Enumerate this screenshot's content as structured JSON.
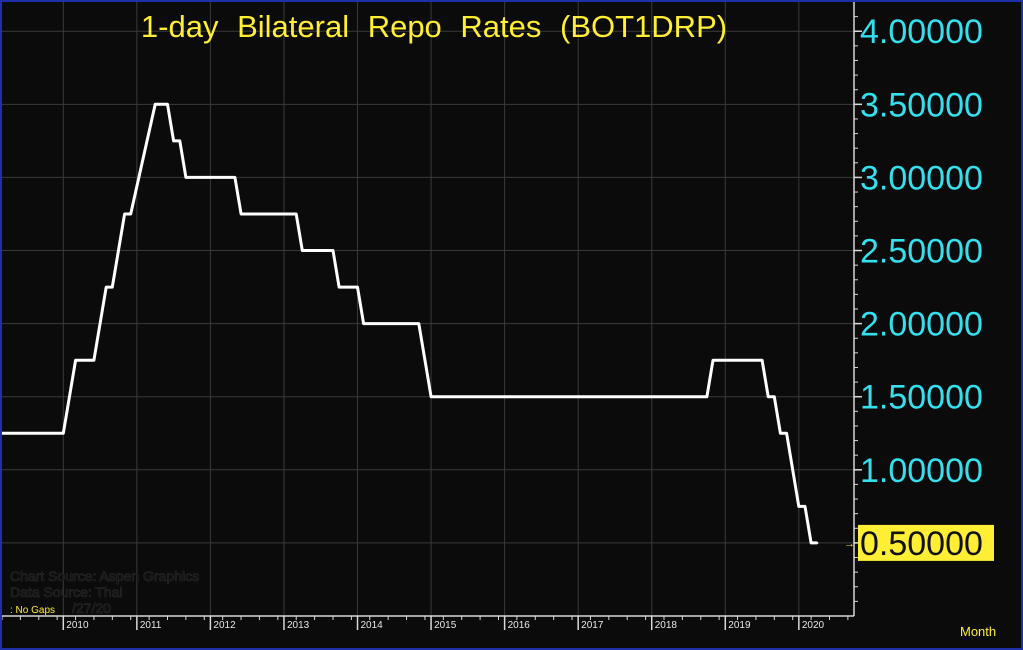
{
  "chart_data": {
    "type": "line",
    "title": "1-day  Bilateral  Repo  Rates  (BOT1DRP)",
    "y_ticks": [
      "4.00000",
      "3.50000",
      "3.00000",
      "2.50000",
      "2.00000",
      "1.50000",
      "1.00000",
      "0.50000"
    ],
    "ylim": [
      0,
      4.2
    ],
    "x_ticks": [
      "2010",
      "2011",
      "2012",
      "2013",
      "2014",
      "2015",
      "2016",
      "2017",
      "2018",
      "2019",
      "2020"
    ],
    "xlim": [
      "2009-03",
      "2020-10"
    ],
    "last_value": "0.50000",
    "grid": true,
    "x_period_label": "Month",
    "source_lines": [
      "Chart  Source:  Aspen  Graphics",
      "Data  Source:  Thai",
      "/27/20"
    ],
    "no_gaps_label": ": No  Gaps",
    "colors": {
      "background": "#0b0b0b",
      "line": "#ffffff",
      "title": "#ffee33",
      "y_axis_text": "#35e0ee",
      "grid": "#3a3a3a",
      "last_value_box": "#ffee33",
      "border": "#1f2fa8"
    },
    "series": [
      {
        "values": [
          {
            "x": "2009-03",
            "y": 1.25
          },
          {
            "x": "2010-01",
            "y": 1.25
          },
          {
            "x": "2010-03",
            "y": 1.75
          },
          {
            "x": "2010-06",
            "y": 1.75
          },
          {
            "x": "2010-08",
            "y": 2.25
          },
          {
            "x": "2010-09",
            "y": 2.25
          },
          {
            "x": "2010-11",
            "y": 2.75
          },
          {
            "x": "2010-12",
            "y": 2.75
          },
          {
            "x": "2011-04",
            "y": 3.5
          },
          {
            "x": "2011-06",
            "y": 3.5
          },
          {
            "x": "2011-07",
            "y": 3.25
          },
          {
            "x": "2011-08",
            "y": 3.25
          },
          {
            "x": "2011-09",
            "y": 3.0
          },
          {
            "x": "2012-05",
            "y": 3.0
          },
          {
            "x": "2012-06",
            "y": 2.75
          },
          {
            "x": "2013-03",
            "y": 2.75
          },
          {
            "x": "2013-04",
            "y": 2.5
          },
          {
            "x": "2013-09",
            "y": 2.5
          },
          {
            "x": "2013-10",
            "y": 2.25
          },
          {
            "x": "2014-01",
            "y": 2.25
          },
          {
            "x": "2014-02",
            "y": 2.0
          },
          {
            "x": "2014-11",
            "y": 2.0
          },
          {
            "x": "2015-01",
            "y": 1.5
          },
          {
            "x": "2018-10",
            "y": 1.5
          },
          {
            "x": "2018-11",
            "y": 1.75
          },
          {
            "x": "2019-07",
            "y": 1.75
          },
          {
            "x": "2019-08",
            "y": 1.5
          },
          {
            "x": "2019-09",
            "y": 1.5
          },
          {
            "x": "2019-10",
            "y": 1.25
          },
          {
            "x": "2019-11",
            "y": 1.25
          },
          {
            "x": "2020-01",
            "y": 0.75
          },
          {
            "x": "2020-02",
            "y": 0.75
          },
          {
            "x": "2020-03",
            "y": 0.5
          },
          {
            "x": "2020-04",
            "y": 0.5
          }
        ]
      }
    ]
  }
}
